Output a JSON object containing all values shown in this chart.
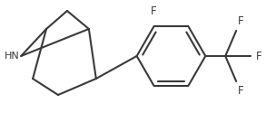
{
  "bg_color": "#ffffff",
  "line_color": "#3a3a3a",
  "text_color": "#3a3a3a",
  "line_width": 1.5,
  "font_size": 8.0,
  "figsize": [
    3.04,
    1.25
  ],
  "dpi": 100,
  "xlim": [
    0,
    304
  ],
  "ylim": [
    0,
    125
  ]
}
